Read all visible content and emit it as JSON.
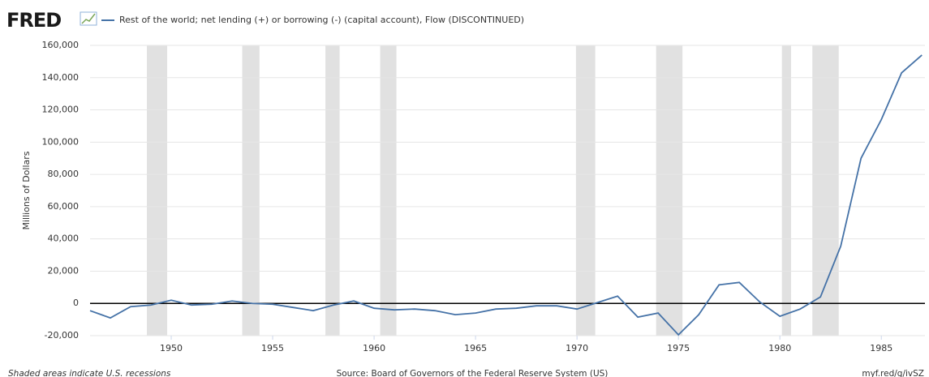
{
  "logo": "FRED",
  "chart_data": {
    "type": "line",
    "series": [
      {
        "name": "Rest of the world; net lending (+) or borrowing (-) (capital account), Flow (DISCONTINUED)",
        "color": "#4572a7",
        "values": [
          -4500,
          -9000,
          -2000,
          -1000,
          2000,
          -1000,
          -500,
          1500,
          0,
          -500,
          -2500,
          -4500,
          -1000,
          1500,
          -3000,
          -4000,
          -3500,
          -4500,
          -7000,
          -6000,
          -3500,
          -3000,
          -1500,
          -1500,
          -3500,
          500,
          4500,
          -8500,
          -6000,
          -19500,
          -7000,
          11500,
          13000,
          1000,
          -8000,
          -3500,
          4000,
          35500,
          90000,
          114000,
          143000,
          154000
        ]
      }
    ],
    "x": [
      1946,
      1947,
      1948,
      1949,
      1950,
      1951,
      1952,
      1953,
      1954,
      1955,
      1956,
      1957,
      1958,
      1959,
      1960,
      1961,
      1962,
      1963,
      1964,
      1965,
      1966,
      1967,
      1968,
      1969,
      1970,
      1971,
      1972,
      1973,
      1974,
      1975,
      1976,
      1977,
      1978,
      1979,
      1980,
      1981,
      1982,
      1983,
      1984,
      1985,
      1986,
      1987
    ],
    "xlim": [
      1946,
      1987.15
    ],
    "xticks": [
      1950,
      1955,
      1960,
      1965,
      1970,
      1975,
      1980,
      1985
    ],
    "ylim": [
      -20000,
      160000
    ],
    "yticks": [
      {
        "value": -20000,
        "label": "-20,000"
      },
      0,
      {
        "value": 20000,
        "label": "20,000"
      },
      {
        "value": 40000,
        "label": "40,000"
      },
      {
        "value": 60000,
        "label": "60,000"
      },
      {
        "value": 80000,
        "label": "80,000"
      },
      {
        "value": 100000,
        "label": "100,000"
      },
      {
        "value": 120000,
        "label": "120,000"
      },
      {
        "value": 140000,
        "label": "140,000"
      },
      {
        "value": 160000,
        "label": "160,000"
      }
    ],
    "ylabel": "Millions of Dollars",
    "grid": true,
    "recessions": [
      [
        1948.8,
        1949.8
      ],
      [
        1953.5,
        1954.35
      ],
      [
        1957.6,
        1958.3
      ],
      [
        1960.3,
        1961.1
      ],
      [
        1969.95,
        1970.9
      ],
      [
        1973.9,
        1975.2
      ],
      [
        1980.1,
        1980.55
      ],
      [
        1981.6,
        1982.9
      ]
    ],
    "note": "Shaded areas indicate U.S. recessions",
    "source": "Source: Board of Governors of the Federal Reserve System (US)",
    "url": "myf.red/g/ivSZ"
  }
}
